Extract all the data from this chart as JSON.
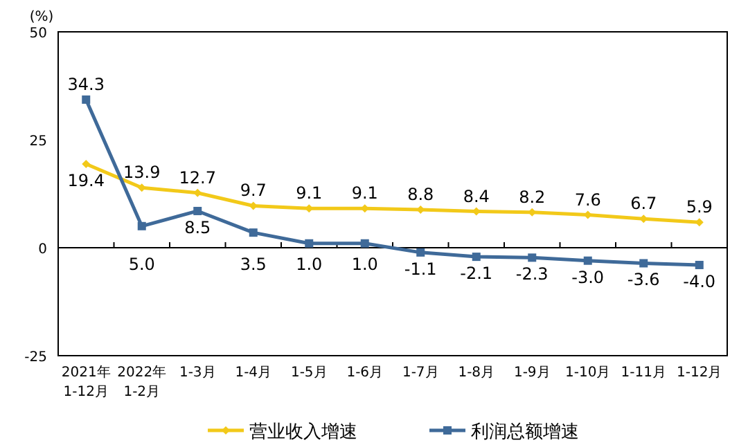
{
  "chart_data": {
    "type": "line",
    "ylabel": "(%)",
    "categories": [
      "2021年\n1-12月",
      "2022年\n1-2月",
      "1-3月",
      "1-4月",
      "1-5月",
      "1-6月",
      "1-7月",
      "1-8月",
      "1-9月",
      "1-10月",
      "1-11月",
      "1-12月"
    ],
    "series": [
      {
        "name": "营业收入增速",
        "color": "#f2c919",
        "marker": "diamond",
        "values": [
          19.4,
          13.9,
          12.7,
          9.7,
          9.1,
          9.1,
          8.8,
          8.4,
          8.2,
          7.6,
          6.7,
          5.9
        ],
        "value_labels": [
          "19.4",
          "13.9",
          "12.7",
          "9.7",
          "9.1",
          "9.1",
          "8.8",
          "8.4",
          "8.2",
          "7.6",
          "6.7",
          "5.9"
        ]
      },
      {
        "name": "利润总额增速",
        "color": "#3f6a99",
        "marker": "square",
        "values": [
          34.3,
          5.0,
          8.5,
          3.5,
          1.0,
          1.0,
          -1.1,
          -2.1,
          -2.3,
          -3.0,
          -3.6,
          -4.0
        ],
        "value_labels": [
          "34.3",
          "5.0",
          "8.5",
          "3.5",
          "1.0",
          "1.0",
          "-1.1",
          "-2.1",
          "-2.3",
          "-3.0",
          "-3.6",
          "-4.0"
        ]
      }
    ],
    "ylim": [
      -25,
      50
    ],
    "yticks": [
      -25,
      0,
      25,
      50
    ],
    "ref_lines": [
      {
        "axis": "y",
        "value": 0
      }
    ],
    "legend": "bottom"
  }
}
